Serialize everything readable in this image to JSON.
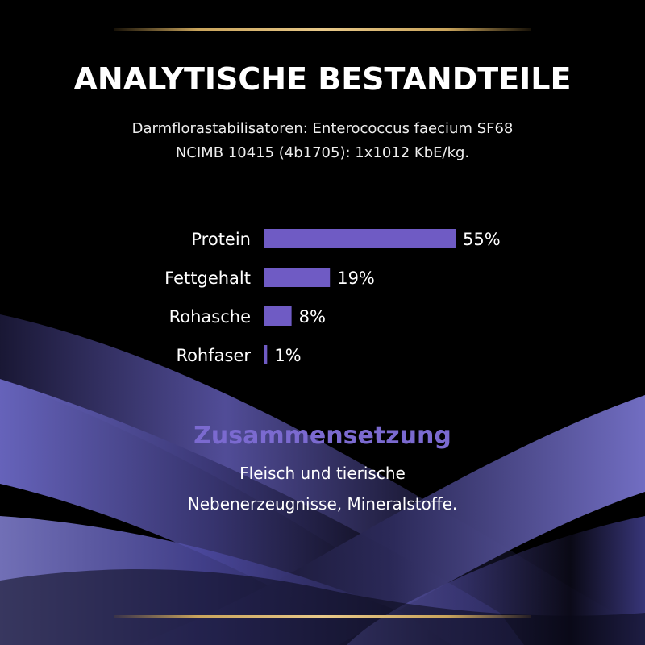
{
  "colors": {
    "background": "#000000",
    "bar": "#6f5bc4",
    "accent_heading": "#7b6ad0",
    "gold": "#c9a45c",
    "text": "#ffffff"
  },
  "heading": "ANALYTISCHE BESTANDTEILE",
  "note": {
    "line1": "Darmflorastabilisatoren: Enterococcus faecium SF68",
    "line2": "NCIMB 10415 (4b1705): 1x1012 KbE/kg."
  },
  "chart_data": {
    "type": "bar",
    "orientation": "horizontal",
    "categories": [
      "Protein",
      "Fettgehalt",
      "Rohasche",
      "Rohfaser"
    ],
    "values": [
      55,
      19,
      8,
      1
    ],
    "value_labels": [
      "55%",
      "19%",
      "8%",
      "1%"
    ],
    "unit": "%",
    "title": "",
    "xlabel": "",
    "ylabel": "",
    "xlim": [
      0,
      55
    ],
    "grid": false,
    "legend": "none"
  },
  "composition": {
    "title": "Zusammensetzung",
    "line1": "Fleisch und tierische",
    "line2": "Nebenerzeugnisse, Mineralstoffe."
  }
}
